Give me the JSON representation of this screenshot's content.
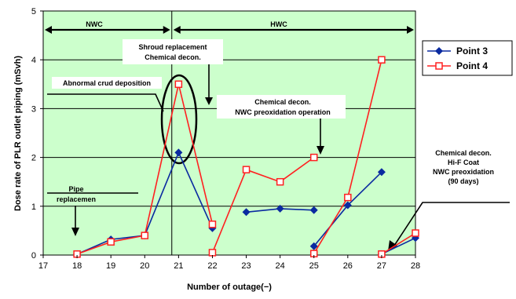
{
  "chart_data": {
    "type": "line",
    "title": "",
    "xlabel": "Number of outage(−)",
    "ylabel": "Dose rate of PLR outlet piping (mSvh)",
    "xlim": [
      17,
      28
    ],
    "ylim": [
      0,
      5
    ],
    "x_ticks": [
      "17",
      "18",
      "19",
      "20",
      "21",
      "22",
      "23",
      "24",
      "25",
      "26",
      "27",
      "28"
    ],
    "y_ticks": [
      "0",
      "1",
      "2",
      "3",
      "4",
      "5"
    ],
    "grid": "horizontal",
    "legend_position": "right",
    "series": [
      {
        "name": "Point 3",
        "color": "#0a2aa0",
        "marker": "diamond-filled",
        "segments": [
          [
            [
              18,
              0.02
            ],
            [
              19,
              0.32
            ],
            [
              20,
              0.4
            ],
            [
              21,
              2.1
            ],
            [
              22,
              0.55
            ]
          ],
          [
            [
              23,
              0.88
            ],
            [
              24,
              0.95
            ],
            [
              25,
              0.92
            ]
          ],
          [
            [
              25,
              0.18
            ],
            [
              26,
              1.02
            ],
            [
              27,
              1.7
            ]
          ],
          [
            [
              27,
              0.02
            ],
            [
              28,
              0.35
            ]
          ]
        ]
      },
      {
        "name": "Point 4",
        "color": "#ff2020",
        "marker": "square-open",
        "segments": [
          [
            [
              18,
              0.02
            ],
            [
              19,
              0.27
            ],
            [
              20,
              0.4
            ],
            [
              21,
              3.5
            ],
            [
              22,
              0.63
            ]
          ],
          [
            [
              22,
              0.05
            ],
            [
              23,
              1.75
            ],
            [
              24,
              1.5
            ],
            [
              25,
              2.0
            ]
          ],
          [
            [
              25,
              0.03
            ],
            [
              26,
              1.18
            ],
            [
              27,
              4.0
            ]
          ],
          [
            [
              27,
              0.02
            ],
            [
              28,
              0.45
            ]
          ]
        ]
      }
    ],
    "periods": [
      {
        "label": "NWC",
        "from": 17,
        "to": 20.8
      },
      {
        "label": "HWC",
        "from": 20.8,
        "to": 28
      }
    ],
    "annotations": [
      {
        "id": "shroud",
        "lines": [
          "Shroud replacement",
          "Chemical decon."
        ]
      },
      {
        "id": "crud",
        "lines": [
          "Abnormal crud deposition"
        ]
      },
      {
        "id": "nwcox",
        "lines": [
          "Chemical decon.",
          "NWC preoxidation operation"
        ]
      },
      {
        "id": "pipe",
        "lines": [
          "Pipe",
          "replacemen"
        ]
      },
      {
        "id": "hicoat",
        "lines": [
          "Chemical decon.",
          "Hi-F Coat",
          "NWC preoxidation",
          "(90 days)"
        ]
      }
    ]
  }
}
